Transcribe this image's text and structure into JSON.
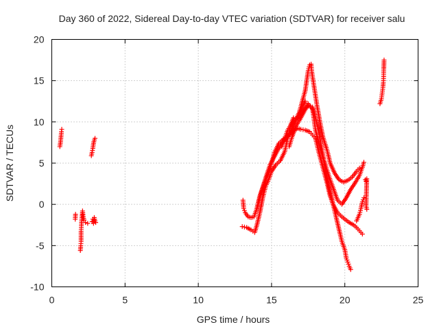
{
  "chart_data": {
    "type": "scatter",
    "title": "Day 360 of 2022, Sidereal Day-to-day VTEC variation (SDTVAR) for receiver salu",
    "xlabel": "GPS time / hours",
    "ylabel": "SDTVAR / TECUs",
    "xlim": [
      0,
      25
    ],
    "ylim": [
      -10,
      20
    ],
    "x_ticks": [
      0,
      5,
      10,
      15,
      20,
      25
    ],
    "y_ticks": [
      -10,
      -5,
      0,
      5,
      10,
      15,
      20
    ],
    "grid": true,
    "marker": "plus",
    "color": "#ff0000",
    "segments": [
      {
        "name": "a",
        "points": [
          [
            0.55,
            7.0
          ],
          [
            0.6,
            7.6
          ],
          [
            0.63,
            8.2
          ],
          [
            0.66,
            8.8
          ],
          [
            0.68,
            9.1
          ]
        ]
      },
      {
        "name": "b",
        "points": [
          [
            1.6,
            -1.8
          ],
          [
            1.62,
            -1.2
          ]
        ]
      },
      {
        "name": "c",
        "points": [
          [
            1.95,
            -5.6
          ],
          [
            1.98,
            -5.0
          ],
          [
            2.0,
            -4.5
          ],
          [
            2.0,
            -3.3
          ],
          [
            2.02,
            -2.6
          ],
          [
            2.05,
            -1.8
          ],
          [
            2.08,
            -1.2
          ],
          [
            2.1,
            -0.8
          ],
          [
            2.15,
            -1.5
          ],
          [
            2.2,
            -1.9
          ],
          [
            2.3,
            -2.2
          ],
          [
            2.45,
            -2.3
          ]
        ]
      },
      {
        "name": "d",
        "points": [
          [
            2.7,
            5.9
          ],
          [
            2.75,
            6.3
          ],
          [
            2.8,
            6.8
          ],
          [
            2.85,
            7.4
          ],
          [
            2.9,
            7.8
          ],
          [
            2.95,
            8.0
          ]
        ]
      },
      {
        "name": "e",
        "points": [
          [
            2.75,
            -2.1
          ],
          [
            2.8,
            -1.8
          ],
          [
            2.85,
            -2.3
          ],
          [
            2.9,
            -1.6
          ],
          [
            2.95,
            -2.0
          ],
          [
            3.0,
            -2.2
          ]
        ]
      },
      {
        "name": "f",
        "points": [
          [
            13.05,
            0.5
          ],
          [
            13.1,
            -0.5
          ],
          [
            13.2,
            -1.0
          ],
          [
            13.4,
            -1.5
          ],
          [
            13.6,
            -1.6
          ],
          [
            13.8,
            -1.5
          ],
          [
            14.0,
            -0.5
          ],
          [
            14.2,
            1.0
          ],
          [
            14.5,
            2.5
          ],
          [
            14.8,
            3.8
          ],
          [
            15.0,
            5.0
          ],
          [
            15.2,
            6.3
          ],
          [
            15.5,
            7.4
          ],
          [
            15.8,
            7.9
          ],
          [
            16.0,
            8.1
          ],
          [
            16.2,
            8.4
          ],
          [
            16.5,
            9.0
          ],
          [
            16.8,
            9.2
          ],
          [
            17.0,
            9.1
          ],
          [
            17.3,
            9.0
          ],
          [
            17.6,
            8.8
          ],
          [
            17.8,
            8.4
          ],
          [
            18.0,
            8.0
          ],
          [
            18.2,
            6.5
          ],
          [
            18.5,
            4.5
          ],
          [
            18.8,
            2.5
          ],
          [
            19.0,
            1.0
          ],
          [
            19.2,
            0.0
          ],
          [
            19.5,
            -1.0
          ],
          [
            19.8,
            -1.5
          ],
          [
            20.0,
            -1.8
          ],
          [
            20.3,
            -2.2
          ],
          [
            20.6,
            -2.5
          ],
          [
            20.8,
            -2.8
          ],
          [
            21.0,
            -3.2
          ],
          [
            21.2,
            -3.6
          ]
        ]
      },
      {
        "name": "g",
        "points": [
          [
            13.0,
            -2.7
          ],
          [
            13.3,
            -2.8
          ],
          [
            13.6,
            -3.1
          ],
          [
            13.85,
            -3.4
          ],
          [
            14.0,
            -2.5
          ],
          [
            14.2,
            -1.0
          ],
          [
            14.4,
            0.8
          ],
          [
            14.6,
            2.2
          ],
          [
            14.8,
            3.0
          ],
          [
            15.0,
            4.0
          ],
          [
            15.3,
            4.8
          ],
          [
            15.6,
            5.3
          ],
          [
            15.9,
            6.4
          ],
          [
            16.1,
            8.0
          ],
          [
            16.3,
            9.6
          ],
          [
            16.5,
            10.5
          ],
          [
            16.8,
            10.4
          ],
          [
            17.0,
            10.8
          ],
          [
            17.2,
            11.5
          ],
          [
            17.5,
            11.9
          ],
          [
            17.8,
            11.8
          ],
          [
            18.0,
            10.5
          ],
          [
            18.2,
            9.0
          ],
          [
            18.4,
            7.0
          ],
          [
            18.6,
            5.0
          ],
          [
            18.8,
            3.0
          ],
          [
            19.0,
            1.5
          ],
          [
            19.2,
            0.0
          ],
          [
            19.4,
            -1.5
          ],
          [
            19.6,
            -3.0
          ],
          [
            19.8,
            -4.5
          ],
          [
            20.0,
            -5.5
          ],
          [
            20.1,
            -6.5
          ],
          [
            20.2,
            -7.0
          ],
          [
            20.3,
            -7.5
          ],
          [
            20.4,
            -7.9
          ]
        ]
      },
      {
        "name": "h",
        "points": [
          [
            14.0,
            -0.5
          ],
          [
            14.3,
            1.5
          ],
          [
            14.6,
            3.2
          ],
          [
            14.9,
            4.8
          ],
          [
            15.1,
            5.5
          ],
          [
            15.4,
            6.5
          ],
          [
            15.7,
            7.4
          ],
          [
            16.0,
            8.0
          ],
          [
            16.3,
            8.8
          ],
          [
            16.6,
            10.0
          ],
          [
            16.9,
            11.2
          ],
          [
            17.1,
            12.5
          ],
          [
            17.3,
            13.8
          ],
          [
            17.5,
            16.2
          ],
          [
            17.6,
            16.9
          ],
          [
            17.7,
            17.0
          ],
          [
            17.75,
            16.0
          ],
          [
            17.9,
            14.3
          ],
          [
            18.1,
            12.0
          ],
          [
            18.3,
            10.0
          ],
          [
            18.5,
            8.2
          ],
          [
            18.8,
            6.5
          ],
          [
            19.0,
            5.0
          ],
          [
            19.3,
            3.8
          ],
          [
            19.6,
            3.0
          ],
          [
            19.9,
            2.7
          ],
          [
            20.2,
            2.9
          ],
          [
            20.5,
            3.3
          ],
          [
            20.8,
            4.0
          ],
          [
            21.0,
            4.4
          ]
        ]
      },
      {
        "name": "i",
        "points": [
          [
            15.7,
            7.0
          ],
          [
            15.9,
            8.0
          ],
          [
            16.1,
            9.0
          ],
          [
            16.3,
            9.6
          ],
          [
            16.6,
            10.2
          ],
          [
            16.9,
            10.8
          ],
          [
            17.1,
            11.8
          ],
          [
            17.3,
            12.5
          ]
        ]
      },
      {
        "name": "j",
        "points": [
          [
            16.2,
            7.0
          ],
          [
            16.4,
            8.2
          ],
          [
            16.7,
            9.6
          ],
          [
            17.0,
            10.5
          ],
          [
            17.3,
            11.5
          ],
          [
            17.5,
            12.2
          ],
          [
            17.8,
            11.5
          ],
          [
            18.0,
            9.0
          ],
          [
            18.3,
            7.0
          ],
          [
            18.6,
            5.2
          ],
          [
            18.9,
            3.5
          ],
          [
            19.2,
            2.0
          ],
          [
            19.5,
            0.5
          ],
          [
            19.8,
            0.0
          ],
          [
            20.1,
            0.8
          ],
          [
            20.4,
            1.8
          ],
          [
            20.7,
            2.6
          ],
          [
            21.0,
            3.5
          ],
          [
            21.2,
            4.5
          ],
          [
            21.3,
            5.1
          ]
        ]
      },
      {
        "name": "k",
        "points": [
          [
            20.8,
            -2.0
          ],
          [
            21.0,
            -1.2
          ],
          [
            21.1,
            -0.5
          ],
          [
            21.2,
            0.3
          ],
          [
            21.3,
            0.8
          ]
        ]
      },
      {
        "name": "l",
        "points": [
          [
            21.4,
            3.0
          ],
          [
            21.45,
            2.8
          ],
          [
            21.5,
            3.1
          ],
          [
            21.45,
            -0.2
          ],
          [
            21.5,
            -0.6
          ]
        ]
      },
      {
        "name": "m",
        "points": [
          [
            22.4,
            12.2
          ],
          [
            22.5,
            12.8
          ],
          [
            22.55,
            13.5
          ],
          [
            22.6,
            14.2
          ],
          [
            22.63,
            14.8
          ],
          [
            22.65,
            15.5
          ],
          [
            22.66,
            16.4
          ],
          [
            22.68,
            17.5
          ]
        ]
      }
    ]
  }
}
